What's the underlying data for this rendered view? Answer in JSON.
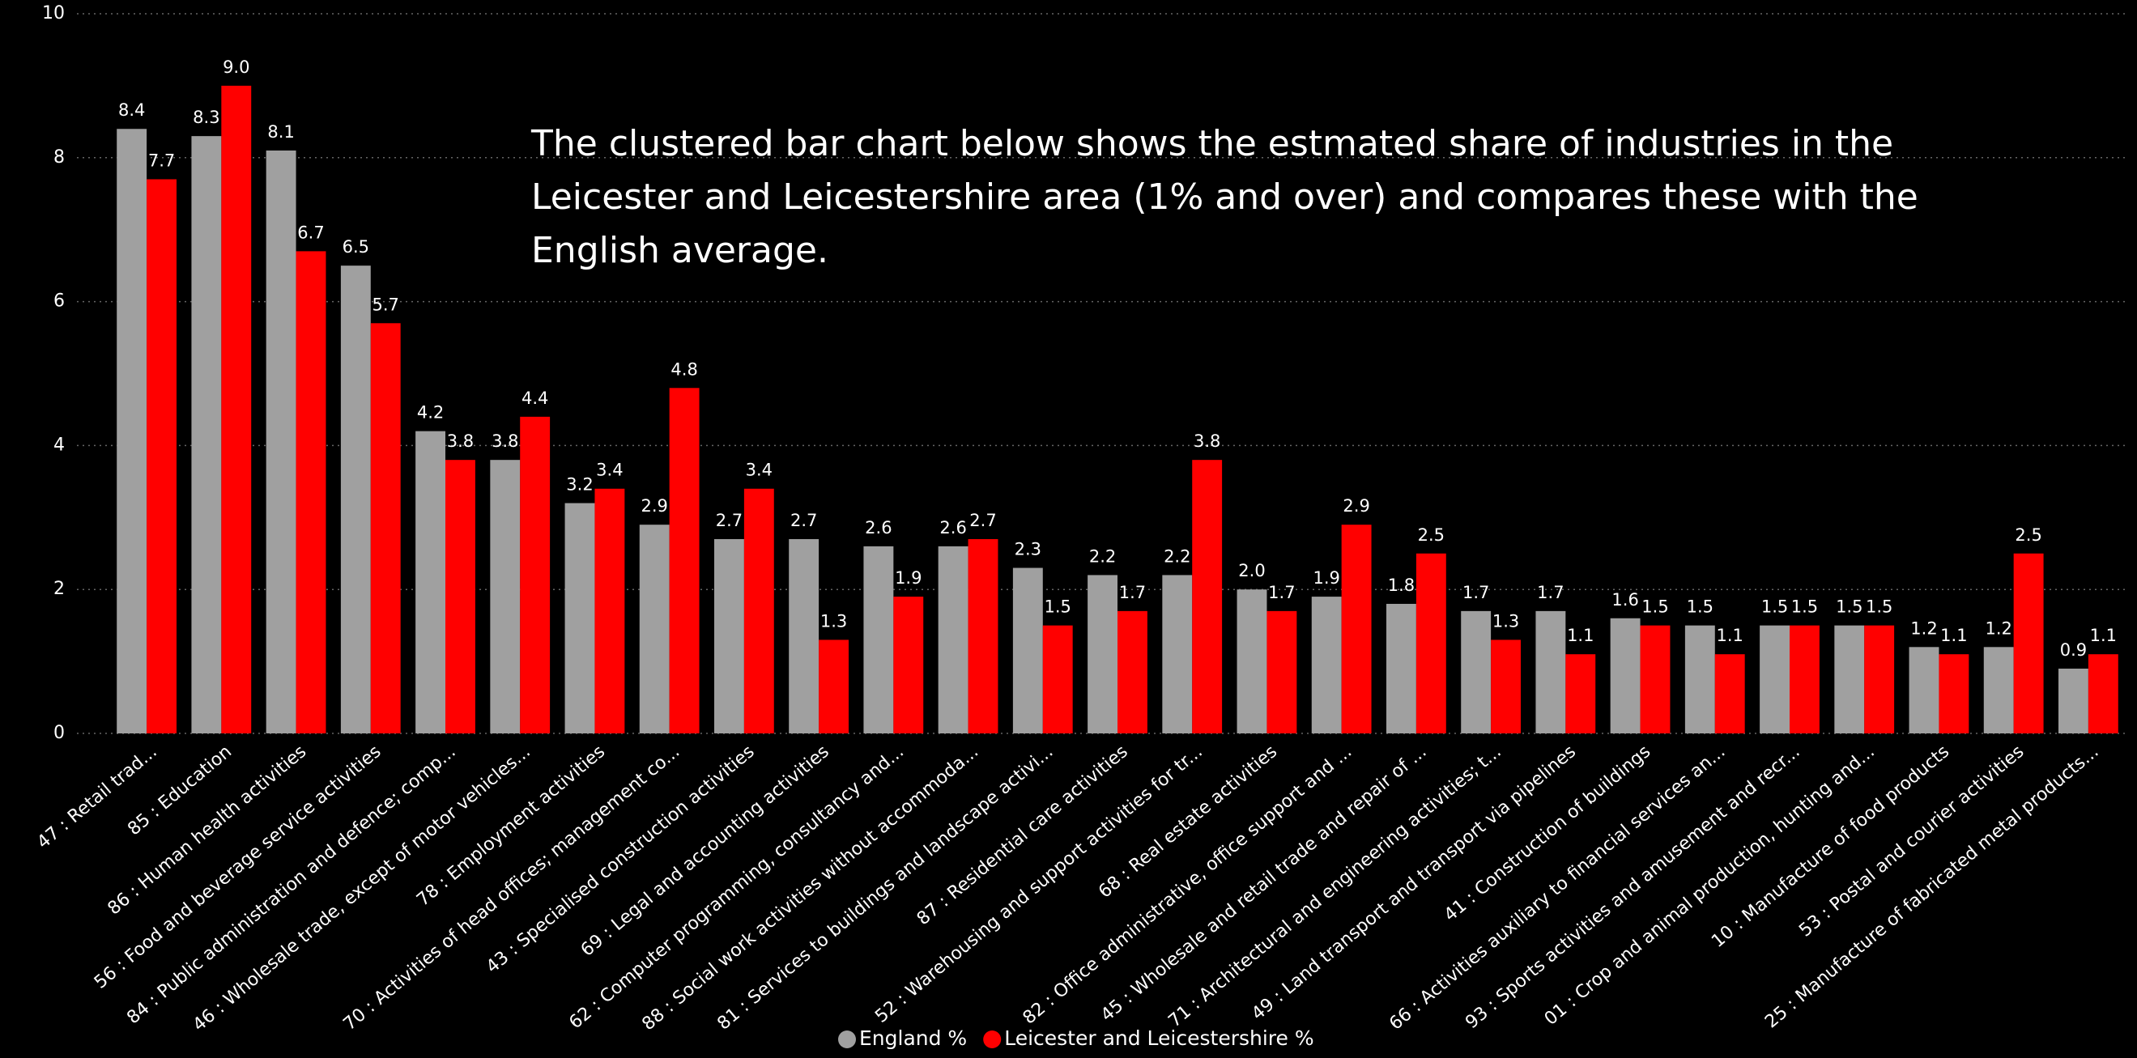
{
  "chart_data": {
    "type": "bar",
    "annotation": "The clustered bar chart below shows the estmated share of industries in the Leicester and Leicestershire area (1% and over) and compares these with the English average.",
    "categories": [
      "47 : Retail trad...",
      "85 : Education",
      "86 : Human health activities",
      "56 : Food and beverage service activities",
      "84 : Public administration and defence; comp...",
      "46 : Wholesale trade, except of motor vehicles...",
      "78 : Employment activities",
      "70 : Activities of head offices; management co...",
      "43 : Specialised construction activities",
      "69 : Legal and accounting activities",
      "62 : Computer programming, consultancy and...",
      "88 : Social work activities without accommoda...",
      "81 : Services to buildings and landscape activi...",
      "87 : Residential care activities",
      "52 : Warehousing and support activities for tr...",
      "68 : Real estate activities",
      "82 : Office administrative, office support and ...",
      "45 : Wholesale and retail trade and repair of ...",
      "71 : Architectural and engineering activities; t...",
      "49 : Land transport and transport via pipelines",
      "41 : Construction of buildings",
      "66 : Activities auxiliary to financial services an...",
      "93 : Sports activities and amusement and recr...",
      "01 : Crop and animal production, hunting and...",
      "10 : Manufacture of food products",
      "53 : Postal and courier activities",
      "25 : Manufacture of fabricated metal products..."
    ],
    "series": [
      {
        "name": "England %",
        "color": "#a0a0a0",
        "values": [
          8.4,
          8.3,
          8.1,
          6.5,
          4.2,
          3.8,
          3.2,
          2.9,
          2.7,
          2.7,
          2.6,
          2.6,
          2.3,
          2.2,
          2.2,
          2.0,
          1.9,
          1.8,
          1.7,
          1.7,
          1.6,
          1.5,
          1.5,
          1.5,
          1.2,
          1.2,
          0.9
        ],
        "value_labels": [
          "8.4",
          "8.3",
          "8.1",
          "6.5",
          "4.2",
          "3.8",
          "3.2",
          "2.9",
          "2.7",
          "2.7",
          "2.6",
          "2.6",
          "2.3",
          "2.2",
          "2.2",
          "2.0",
          "1.9",
          "1.8",
          "1.7",
          "1.7",
          "1.6",
          "1.5",
          "1.5",
          "1.5",
          "1.2",
          "1.2",
          "0.9"
        ]
      },
      {
        "name": "Leicester and Leicestershire %",
        "color": "#ff0000",
        "values": [
          7.7,
          9.0,
          6.7,
          5.7,
          3.8,
          4.4,
          3.4,
          4.8,
          3.4,
          1.3,
          1.9,
          2.7,
          1.5,
          1.7,
          3.8,
          1.7,
          2.9,
          2.5,
          1.3,
          1.1,
          1.5,
          1.1,
          1.5,
          1.5,
          1.1,
          2.5,
          1.1
        ],
        "value_labels": [
          "7.7",
          "9.0",
          "6.7",
          "5.7",
          "3.8",
          "4.4",
          "3.4",
          "4.8",
          "3.4",
          "1.3",
          "1.9",
          "2.7",
          "1.5",
          "1.7",
          "3.8",
          "1.7",
          "2.9",
          "2.5",
          "1.3",
          "1.1",
          "1.5",
          "1.1",
          "1.5",
          "1.5",
          "1.1",
          "2.5",
          "1.1"
        ]
      }
    ],
    "ylim": [
      0,
      10
    ],
    "yticks": [
      0,
      2,
      4,
      6,
      8,
      10
    ],
    "grid": true,
    "legend": "bottom"
  }
}
